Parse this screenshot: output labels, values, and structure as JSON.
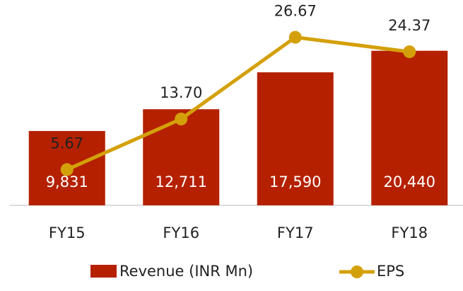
{
  "chart_data": {
    "type": "bar",
    "categories": [
      "FY15",
      "FY16",
      "FY17",
      "FY18"
    ],
    "series": [
      {
        "name": "Revenue (INR Mn)",
        "type": "bar",
        "color": "#b52100",
        "values": [
          9831,
          12711,
          17590,
          20440
        ],
        "value_labels": [
          "9,831",
          "12,711",
          "17,590",
          "20,440"
        ]
      },
      {
        "name": "EPS",
        "type": "line",
        "axis": "y2",
        "color": "#d4a00a",
        "values": [
          5.67,
          13.7,
          26.67,
          24.37
        ],
        "value_labels": [
          "5.67",
          "13.70",
          "26.67",
          "24.37"
        ]
      }
    ],
    "ylim": [
      0,
      25000
    ],
    "y2lim": [
      0,
      30
    ],
    "legend": "bottom"
  }
}
